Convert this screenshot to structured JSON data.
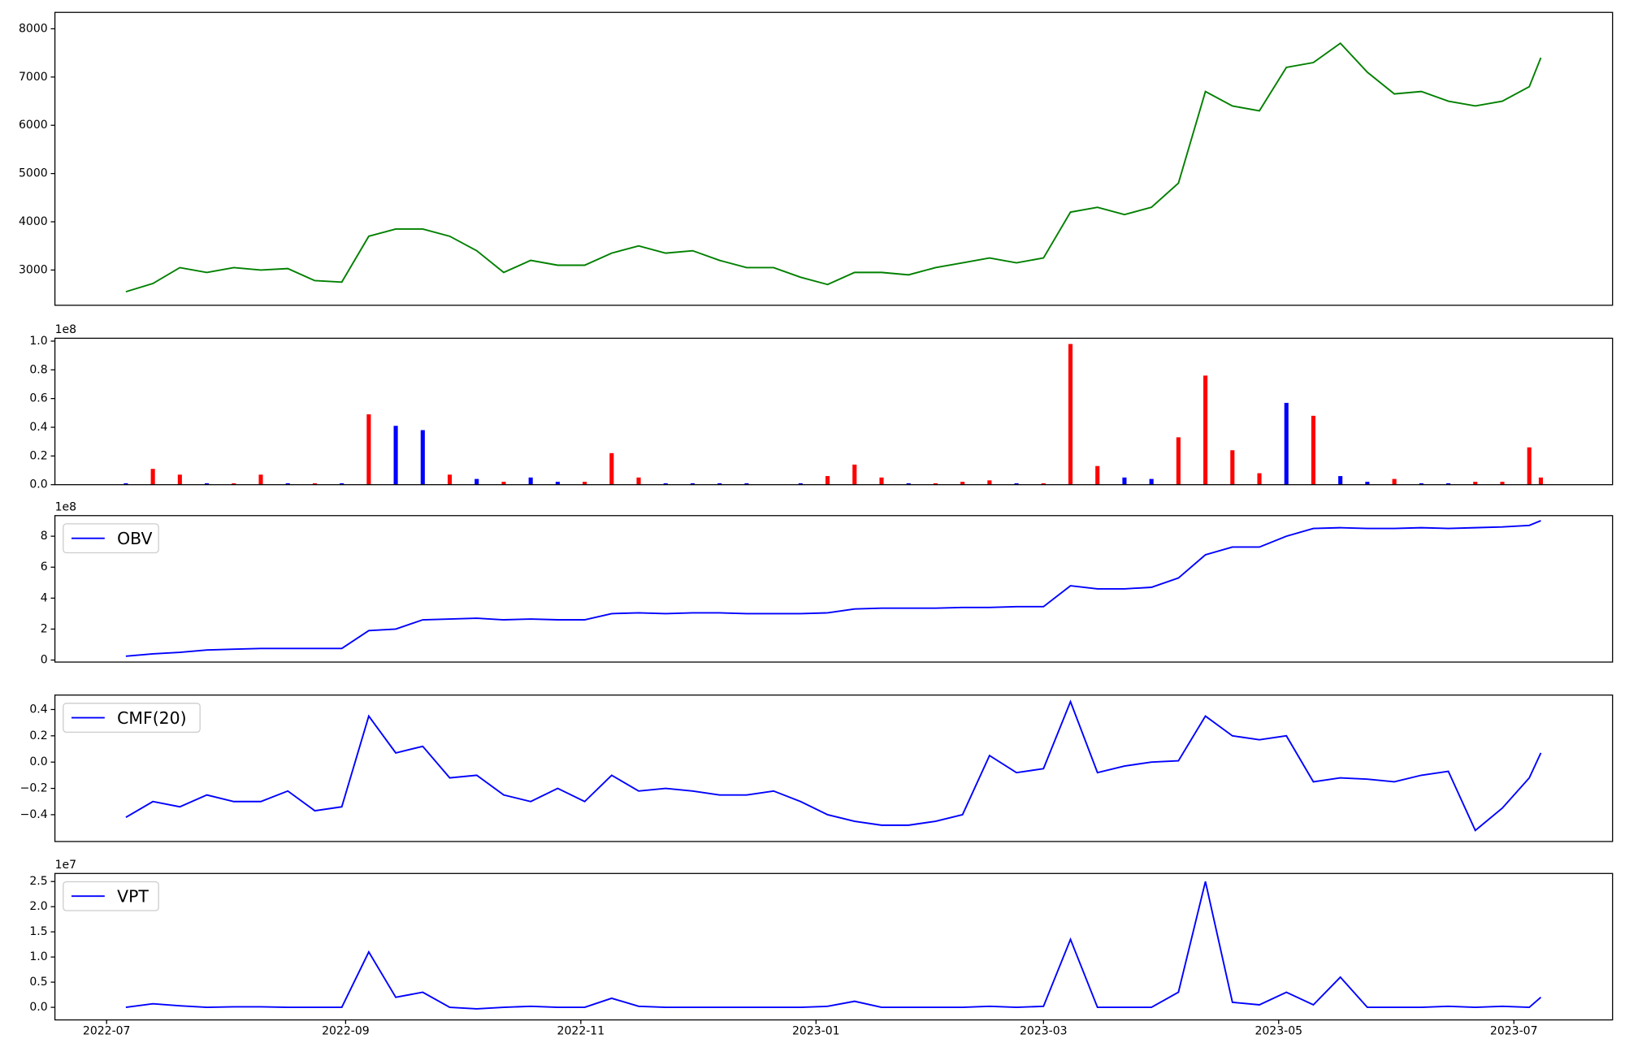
{
  "chart_data": [
    {
      "type": "line",
      "xlim": [
        -13.4,
        390.6
      ],
      "ylim": [
        2270,
        8340
      ],
      "yticks": [
        3000,
        4000,
        5000,
        6000,
        7000,
        8000
      ],
      "x": [
        5,
        12,
        19,
        26,
        33,
        40,
        47,
        54,
        61,
        68,
        75,
        82,
        89,
        96,
        103,
        110,
        117,
        124,
        131,
        138,
        145,
        152,
        159,
        166,
        173,
        180,
        187,
        194,
        201,
        208,
        215,
        222,
        229,
        236,
        243,
        250,
        257,
        264,
        271,
        278,
        285,
        292,
        299,
        306,
        313,
        320,
        327,
        334,
        341,
        348,
        355,
        362,
        369,
        372
      ],
      "series": [
        {
          "color": "green",
          "values": [
            2550,
            2720,
            3050,
            2950,
            3050,
            3000,
            3030,
            2780,
            2750,
            3700,
            3850,
            3850,
            3700,
            3400,
            2950,
            3200,
            3100,
            3100,
            3350,
            3500,
            3350,
            3400,
            3200,
            3050,
            3050,
            2850,
            2700,
            2950,
            2950,
            2900,
            3050,
            3150,
            3250,
            3150,
            3250,
            4200,
            4300,
            4150,
            4300,
            4800,
            6700,
            6400,
            6300,
            7200,
            7300,
            7700,
            7100,
            6650,
            6700,
            6500,
            6400,
            6500,
            6800,
            7400
          ]
        }
      ]
    },
    {
      "type": "bar",
      "xlim": [
        -13.4,
        390.6
      ],
      "ylim": [
        0,
        1.02
      ],
      "y_offset": "1e8",
      "yticks": [
        {
          "value": 0,
          "label": "0.0"
        },
        0.2,
        0.4,
        0.6,
        0.8,
        {
          "value": 1,
          "label": "1.0"
        }
      ],
      "x": [
        5,
        12,
        19,
        26,
        33,
        40,
        47,
        54,
        61,
        68,
        75,
        82,
        89,
        96,
        103,
        110,
        117,
        124,
        131,
        138,
        145,
        152,
        159,
        166,
        173,
        180,
        187,
        194,
        201,
        208,
        215,
        222,
        229,
        236,
        243,
        250,
        257,
        264,
        271,
        278,
        285,
        292,
        299,
        306,
        313,
        320,
        327,
        334,
        341,
        348,
        355,
        362,
        369,
        372
      ],
      "values": [
        0.01,
        0.11,
        0.07,
        0.01,
        0.01,
        0.07,
        0.01,
        0.01,
        0.01,
        0.49,
        0.41,
        0.38,
        0.07,
        0.04,
        0.02,
        0.05,
        0.02,
        0.02,
        0.22,
        0.05,
        0.01,
        0.01,
        0.01,
        0.01,
        0.0,
        0.01,
        0.06,
        0.14,
        0.05,
        0.01,
        0.01,
        0.02,
        0.03,
        0.01,
        0.01,
        0.98,
        0.13,
        0.05,
        0.04,
        0.33,
        0.76,
        0.24,
        0.08,
        0.57,
        0.48,
        0.06,
        0.02,
        0.04,
        0.01,
        0.01,
        0.02,
        0.02,
        0.26,
        0.05
      ],
      "colors": [
        "blue",
        "red",
        "red",
        "blue",
        "red",
        "red",
        "blue",
        "red",
        "blue",
        "red",
        "blue",
        "blue",
        "red",
        "blue",
        "red",
        "blue",
        "blue",
        "red",
        "red",
        "red",
        "blue",
        "blue",
        "blue",
        "blue",
        "blue",
        "blue",
        "red",
        "red",
        "red",
        "blue",
        "red",
        "red",
        "red",
        "blue",
        "red",
        "red",
        "red",
        "blue",
        "blue",
        "red",
        "red",
        "red",
        "red",
        "blue",
        "red",
        "blue",
        "blue",
        "red",
        "blue",
        "blue",
        "red",
        "red",
        "red",
        "red"
      ]
    },
    {
      "type": "line",
      "xlim": [
        -13.4,
        390.6
      ],
      "ylim": [
        -0.13,
        9.33
      ],
      "y_offset": "1e8",
      "yticks": [
        0,
        2,
        4,
        6,
        8
      ],
      "legend": "upper left",
      "x": [
        5,
        12,
        19,
        26,
        33,
        40,
        47,
        54,
        61,
        68,
        75,
        82,
        89,
        96,
        103,
        110,
        117,
        124,
        131,
        138,
        145,
        152,
        159,
        166,
        173,
        180,
        187,
        194,
        201,
        208,
        215,
        222,
        229,
        236,
        243,
        250,
        257,
        264,
        271,
        278,
        285,
        292,
        299,
        306,
        313,
        320,
        327,
        334,
        341,
        348,
        355,
        362,
        369,
        372
      ],
      "series": [
        {
          "name": "OBV",
          "color": "blue",
          "values": [
            0.25,
            0.4,
            0.5,
            0.65,
            0.7,
            0.75,
            0.75,
            0.75,
            0.75,
            1.9,
            2.0,
            2.6,
            2.65,
            2.7,
            2.6,
            2.65,
            2.6,
            2.6,
            3.0,
            3.05,
            3.0,
            3.05,
            3.05,
            3.0,
            3.0,
            3.0,
            3.05,
            3.3,
            3.35,
            3.35,
            3.35,
            3.4,
            3.4,
            3.45,
            3.45,
            4.8,
            4.6,
            4.6,
            4.7,
            5.3,
            6.8,
            7.3,
            7.3,
            8.0,
            8.5,
            8.55,
            8.5,
            8.5,
            8.55,
            8.5,
            8.55,
            8.6,
            8.7,
            9.0
          ]
        }
      ]
    },
    {
      "type": "line",
      "xlim": [
        -13.4,
        390.6
      ],
      "ylim": [
        -0.604,
        0.51
      ],
      "legend": "upper left",
      "yticks": [
        {
          "value": -0.4,
          "label": "−0.4"
        },
        {
          "value": -0.2,
          "label": "−0.2"
        },
        {
          "value": 0,
          "label": "0.0"
        },
        0.2,
        0.4
      ],
      "x": [
        5,
        12,
        19,
        26,
        33,
        40,
        47,
        54,
        61,
        68,
        75,
        82,
        89,
        96,
        103,
        110,
        117,
        124,
        131,
        138,
        145,
        152,
        159,
        166,
        173,
        180,
        187,
        194,
        201,
        208,
        215,
        222,
        229,
        236,
        243,
        250,
        257,
        264,
        271,
        278,
        285,
        292,
        299,
        306,
        313,
        320,
        327,
        334,
        341,
        348,
        355,
        362,
        369,
        372
      ],
      "series": [
        {
          "name": "CMF(20)",
          "color": "blue",
          "values": [
            -0.42,
            -0.3,
            -0.34,
            -0.25,
            -0.3,
            -0.3,
            -0.22,
            -0.37,
            -0.34,
            0.35,
            0.07,
            0.12,
            -0.12,
            -0.1,
            -0.25,
            -0.3,
            -0.2,
            -0.3,
            -0.1,
            -0.22,
            -0.2,
            -0.22,
            -0.25,
            -0.25,
            -0.22,
            -0.3,
            -0.4,
            -0.45,
            -0.48,
            -0.48,
            -0.45,
            -0.4,
            0.05,
            -0.08,
            -0.05,
            0.46,
            -0.08,
            -0.03,
            0.0,
            0.01,
            0.35,
            0.2,
            0.17,
            0.2,
            -0.15,
            -0.12,
            -0.13,
            -0.15,
            -0.1,
            -0.07,
            -0.52,
            -0.35,
            -0.12,
            0.07
          ]
        }
      ]
    },
    {
      "type": "line",
      "xlim": [
        -13.4,
        390.6
      ],
      "ylim": [
        -0.25,
        2.66
      ],
      "y_offset": "1e7",
      "legend": "upper left",
      "yticks": [
        {
          "value": 0,
          "label": "0.0"
        },
        0.5,
        {
          "value": 1,
          "label": "1.0"
        },
        1.5,
        {
          "value": 2,
          "label": "2.0"
        },
        2.5
      ],
      "xticks": [
        {
          "value": 0,
          "label": "2022-07"
        },
        {
          "value": 62,
          "label": "2022-09"
        },
        {
          "value": 123,
          "label": "2022-11"
        },
        {
          "value": 184,
          "label": "2023-01"
        },
        {
          "value": 243,
          "label": "2023-03"
        },
        {
          "value": 304,
          "label": "2023-05"
        },
        {
          "value": 365,
          "label": "2023-07"
        }
      ],
      "x": [
        5,
        12,
        19,
        26,
        33,
        40,
        47,
        54,
        61,
        68,
        75,
        82,
        89,
        96,
        103,
        110,
        117,
        124,
        131,
        138,
        145,
        152,
        159,
        166,
        173,
        180,
        187,
        194,
        201,
        208,
        215,
        222,
        229,
        236,
        243,
        250,
        257,
        264,
        271,
        278,
        285,
        292,
        299,
        306,
        313,
        320,
        327,
        334,
        341,
        348,
        355,
        362,
        369,
        372
      ],
      "series": [
        {
          "name": "VPT",
          "color": "blue",
          "values": [
            0.0,
            0.07,
            0.03,
            0.0,
            0.01,
            0.01,
            0.0,
            0.0,
            0.0,
            1.1,
            0.2,
            0.3,
            0.0,
            -0.03,
            0.0,
            0.02,
            0.0,
            0.0,
            0.18,
            0.02,
            0.0,
            0.0,
            0.0,
            0.0,
            0.0,
            0.0,
            0.02,
            0.12,
            0.0,
            0.0,
            0.0,
            0.0,
            0.02,
            0.0,
            0.02,
            1.35,
            0.0,
            0.0,
            0.0,
            0.3,
            2.5,
            0.1,
            0.05,
            0.3,
            0.05,
            0.6,
            0.0,
            0.0,
            0.0,
            0.02,
            0.0,
            0.02,
            0.0,
            0.2
          ]
        }
      ]
    }
  ]
}
